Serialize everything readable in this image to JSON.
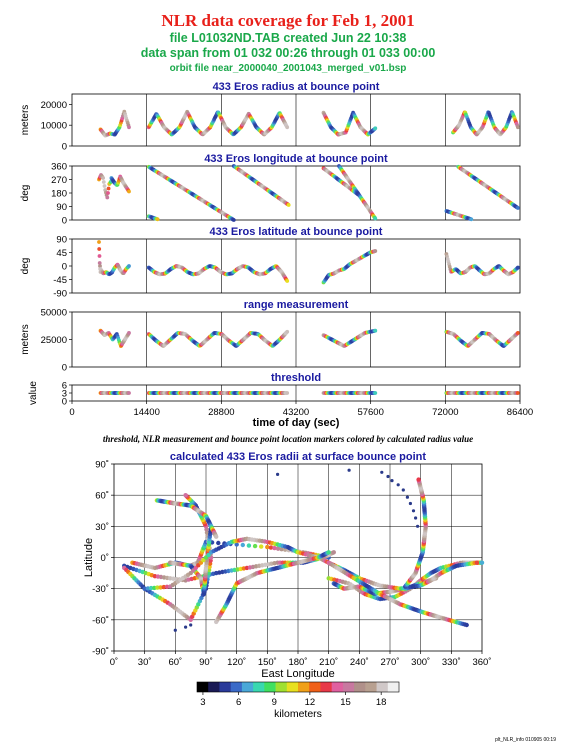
{
  "title": "NLR data coverage for Feb 1, 2001",
  "subtitle1": "file L01032ND.TAB created Jun 22 10:38",
  "subtitle2": "data span from 01 032 00:26 through 01 033 00:00",
  "subtitle3": "orbit file near_2000040_2001043_merged_v01.bsp",
  "caption": "threshold, NLR measurement and bounce point location markers colored by calculated radius value",
  "footer": "plt_NLR_info 010905 00:19",
  "colors": {
    "title": "#e8201a",
    "subtitle": "#1aa84a",
    "panel_title": "#1a1aa0"
  },
  "chart_data": [
    {
      "type": "scatter",
      "title": "433 Eros radius at bounce point",
      "ylabel": "meters",
      "ylim": [
        0,
        25000
      ],
      "yticks": [
        "0",
        "10000",
        "20000"
      ],
      "xlim": [
        0,
        86400
      ],
      "segments": [
        {
          "x0": 5500,
          "x1": 11000,
          "y": [
            8000,
            5000,
            6000,
            5500,
            9000,
            16500,
            9000
          ]
        },
        {
          "x0": 14800,
          "x1": 41500,
          "y": [
            9000,
            15500,
            9000,
            5500,
            9000,
            16500,
            9000,
            5500,
            9000,
            16500,
            9000,
            5500,
            9000,
            15500,
            9000,
            5500,
            9000,
            16000,
            9000
          ]
        },
        {
          "x0": 48500,
          "x1": 58500,
          "y": [
            16000,
            9000,
            5500,
            6500,
            16000,
            9000,
            5500,
            8500
          ]
        },
        {
          "x0": 73500,
          "x1": 86000,
          "y": [
            6500,
            10000,
            16500,
            9000,
            5500,
            9000,
            16500,
            9000,
            5500,
            9000,
            16500,
            9000
          ]
        }
      ]
    },
    {
      "type": "scatter",
      "title": "433 Eros longitude at bounce point",
      "ylabel": "deg",
      "ylim": [
        0,
        360
      ],
      "yticks": [
        "0",
        "90",
        "180",
        "270",
        "360"
      ],
      "xlim": [
        0,
        86400
      ],
      "segments": [
        {
          "x0": 5200,
          "x1": 7600,
          "y": [
            270,
            300,
            280,
            200,
            150,
            240,
            260
          ]
        },
        {
          "x0": 7600,
          "x1": 11000,
          "y": [
            280,
            250,
            230,
            290,
            250,
            220,
            190
          ]
        },
        {
          "x0": 14800,
          "x1": 31200,
          "y": [
            355,
            0
          ]
        },
        {
          "x0": 31200,
          "x1": 41800,
          "y": [
            360,
            100
          ]
        },
        {
          "x0": 14800,
          "x1": 16500,
          "y": [
            25,
            5
          ]
        },
        {
          "x0": 48500,
          "x1": 55200,
          "y": [
            345,
            170
          ]
        },
        {
          "x0": 51500,
          "x1": 58500,
          "y": [
            360,
            10
          ]
        },
        {
          "x0": 72200,
          "x1": 77000,
          "y": [
            60,
            5
          ]
        },
        {
          "x0": 74500,
          "x1": 86000,
          "y": [
            355,
            80
          ]
        }
      ]
    },
    {
      "type": "scatter",
      "title": "433 Eros latitude at bounce point",
      "ylabel": "deg",
      "ylim": [
        -90,
        90
      ],
      "yticks": [
        "-90",
        "-45",
        "0",
        "45",
        "90"
      ],
      "xlim": [
        0,
        86400
      ],
      "segments": [
        {
          "x0": 5200,
          "x1": 5500,
          "y": [
            80,
            10,
            -20
          ]
        },
        {
          "x0": 5500,
          "x1": 11000,
          "y": [
            -10,
            -25,
            -20,
            -28,
            -22,
            -5,
            5,
            -15,
            -25,
            -10,
            0
          ]
        },
        {
          "x0": 14800,
          "x1": 41500,
          "y": [
            -5,
            -20,
            -28,
            -25,
            -10,
            0,
            -5,
            -20,
            -28,
            -25,
            -10,
            0,
            -5,
            -20,
            -28,
            -25,
            -10,
            0,
            -5,
            -20,
            -28,
            -25,
            -10,
            0,
            -20,
            -50
          ]
        },
        {
          "x0": 48500,
          "x1": 58500,
          "y": [
            -55,
            -30,
            -25,
            -15,
            -10,
            5,
            15,
            25,
            35,
            45,
            50
          ]
        },
        {
          "x0": 72200,
          "x1": 86000,
          "y": [
            40,
            -20,
            -10,
            -25,
            -20,
            -5,
            0,
            -15,
            -28,
            -25,
            -10,
            0,
            -15,
            -28,
            -20,
            -5
          ]
        }
      ]
    },
    {
      "type": "scatter",
      "title": "range measurement",
      "ylabel": "meters",
      "ylim": [
        0,
        50000
      ],
      "yticks": [
        "0",
        "25000",
        "50000"
      ],
      "xlim": [
        0,
        86400
      ],
      "segments": [
        {
          "x0": 5500,
          "x1": 11000,
          "y": [
            33000,
            29000,
            31000,
            25000,
            30000,
            19000,
            25000,
            31000
          ]
        },
        {
          "x0": 14800,
          "x1": 41500,
          "y": [
            30000,
            24000,
            19000,
            25000,
            31000,
            30000,
            24000,
            19000,
            25000,
            31000,
            30000,
            24000,
            19000,
            25000,
            31000,
            30000,
            24000,
            19000,
            25000,
            32000
          ]
        },
        {
          "x0": 48500,
          "x1": 58500,
          "y": [
            29000,
            24000,
            19000,
            25000,
            31000,
            33000
          ]
        },
        {
          "x0": 72200,
          "x1": 86000,
          "y": [
            32000,
            30000,
            24000,
            19000,
            25000,
            31000,
            30000,
            24000,
            19000,
            25000,
            31000
          ]
        }
      ]
    },
    {
      "type": "scatter",
      "title": "threshold",
      "ylabel": "value",
      "xlabel": "time of day (sec)",
      "ylim": [
        0,
        6
      ],
      "yticks": [
        "0",
        "3",
        "6"
      ],
      "xlim": [
        0,
        86400
      ],
      "xticks": [
        "0",
        "14400",
        "28800",
        "43200",
        "57600",
        "72000",
        "86400"
      ],
      "segments": [
        {
          "x0": 5500,
          "x1": 11000,
          "y": [
            3,
            3
          ]
        },
        {
          "x0": 14800,
          "x1": 41500,
          "y": [
            3,
            3
          ]
        },
        {
          "x0": 48500,
          "x1": 58500,
          "y": [
            3,
            3
          ]
        },
        {
          "x0": 72200,
          "x1": 86000,
          "y": [
            3,
            3
          ]
        }
      ]
    },
    {
      "type": "scatter",
      "title": "calculated 433 Eros radii at surface bounce point",
      "xlabel": "East Longitude",
      "ylabel": "Latitude",
      "xlim": [
        0,
        360
      ],
      "ylim": [
        -90,
        90
      ],
      "xticks": [
        "0˚",
        "30˚",
        "60˚",
        "90˚",
        "120˚",
        "150˚",
        "180˚",
        "210˚",
        "240˚",
        "270˚",
        "300˚",
        "330˚",
        "360˚"
      ],
      "yticks": [
        "-90˚",
        "-60˚",
        "-30˚",
        "0˚",
        "30˚",
        "60˚",
        "90˚"
      ],
      "tracks": [
        {
          "lon": [
            18,
            40,
            60,
            75,
            82,
            90,
            150,
            185,
            210
          ],
          "lat": [
            -5,
            -10,
            -5,
            -8,
            -5,
            15,
            10,
            5,
            0
          ]
        },
        {
          "lon": [
            10,
            40,
            70,
            100,
            130,
            160,
            185,
            205,
            215
          ],
          "lat": [
            -8,
            -18,
            -22,
            -15,
            -10,
            -5,
            -5,
            0,
            5
          ]
        },
        {
          "lon": [
            10,
            30,
            55,
            75,
            90,
            95,
            90,
            80,
            70
          ],
          "lat": [
            -10,
            -30,
            -45,
            -60,
            -30,
            0,
            30,
            50,
            60
          ]
        },
        {
          "lon": [
            55,
            75,
            85,
            88,
            90,
            95
          ],
          "lat": [
            -5,
            -8,
            -20,
            -35,
            -10,
            30
          ]
        },
        {
          "lon": [
            30,
            55,
            75,
            95,
            115,
            130,
            150,
            170,
            180,
            200,
            210
          ],
          "lat": [
            -30,
            -28,
            -15,
            5,
            15,
            18,
            15,
            10,
            5,
            0,
            -5
          ]
        },
        {
          "lon": [
            42,
            60,
            75,
            90,
            100
          ],
          "lat": [
            55,
            52,
            50,
            40,
            20
          ]
        },
        {
          "lon": [
            100,
            110,
            120,
            140,
            160,
            180,
            200,
            210
          ],
          "lat": [
            -62,
            -45,
            -25,
            -15,
            -10,
            -5,
            0,
            5
          ]
        },
        {
          "lon": [
            210,
            230,
            245,
            260,
            275,
            290,
            300,
            310,
            320,
            340,
            355,
            360
          ],
          "lat": [
            -20,
            -25,
            -35,
            -40,
            -38,
            -30,
            -22,
            -15,
            -10,
            -5,
            -5,
            -5
          ]
        },
        {
          "lon": [
            215,
            225,
            240,
            255,
            270,
            285,
            300,
            315
          ],
          "lat": [
            -25,
            -30,
            -28,
            -35,
            -33,
            -30,
            -25,
            -20
          ]
        },
        {
          "lon": [
            210,
            225,
            240,
            260,
            280,
            300,
            310,
            320,
            335,
            355
          ],
          "lat": [
            -5,
            -12,
            -20,
            -27,
            -30,
            -27,
            -22,
            -15,
            -8,
            -5
          ]
        },
        {
          "lon": [
            210,
            235,
            260,
            280,
            300,
            320,
            345
          ],
          "lat": [
            -5,
            -20,
            -35,
            -45,
            -52,
            -58,
            -65
          ]
        },
        {
          "lon": [
            285,
            295,
            302,
            305,
            303,
            298
          ],
          "lat": [
            -28,
            -15,
            5,
            30,
            55,
            75
          ]
        }
      ],
      "scatter_points": {
        "lon": [
          160,
          230,
          262,
          268,
          272,
          278,
          283,
          287,
          290,
          293,
          295,
          297,
          60,
          70,
          75
        ],
        "lat": [
          80,
          84,
          82,
          78,
          74,
          70,
          65,
          58,
          52,
          45,
          38,
          30,
          -70,
          -67,
          -65
        ]
      }
    }
  ],
  "colorbar": {
    "label": "kilometers",
    "ticks": [
      "3",
      "6",
      "9",
      "12",
      "15",
      "18"
    ],
    "range": [
      2.5,
      19.5
    ],
    "stops": [
      "#000000",
      "#1a1a55",
      "#2a3a9a",
      "#3a6ac8",
      "#4aa8d8",
      "#3ad8b0",
      "#40e060",
      "#a0e030",
      "#e8e020",
      "#f0a018",
      "#f06018",
      "#e83848",
      "#e060a0",
      "#c878a0",
      "#b0908a",
      "#b8a090",
      "#d0c8c8",
      "#f0f0f0"
    ]
  }
}
